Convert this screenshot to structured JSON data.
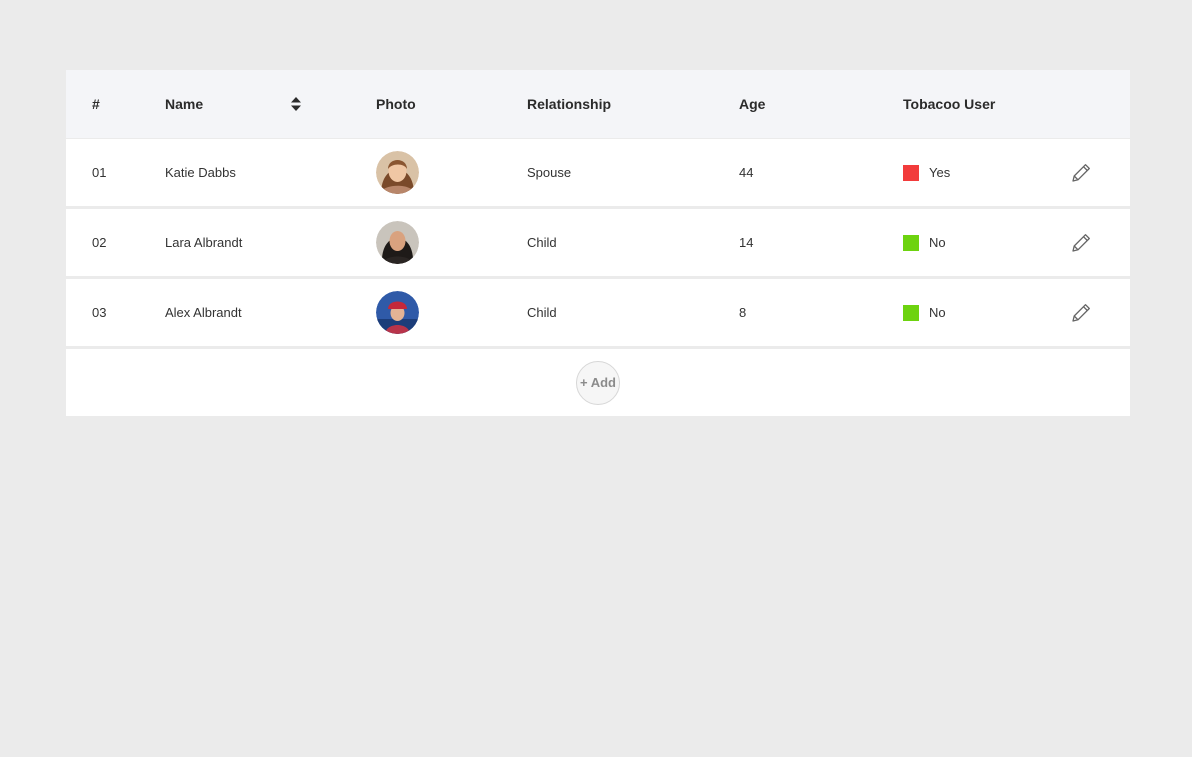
{
  "table": {
    "headers": {
      "num": "#",
      "name": "Name",
      "photo": "Photo",
      "relationship": "Relationship",
      "age": "Age",
      "tobacco": "Tobacoo User"
    },
    "rows": [
      {
        "num": "01",
        "name": "Katie Dabbs",
        "relationship": "Spouse",
        "age": "44",
        "tobacco": "Yes",
        "tobacco_color": "#f23b3b"
      },
      {
        "num": "02",
        "name": "Lara Albrandt",
        "relationship": "Child",
        "age": "14",
        "tobacco": "No",
        "tobacco_color": "#6dd30f"
      },
      {
        "num": "03",
        "name": "Alex Albrandt",
        "relationship": "Child",
        "age": "8",
        "tobacco": "No",
        "tobacco_color": "#6dd30f"
      }
    ],
    "add_label": "+ Add"
  },
  "icons": {
    "sort": "sort-up-down-icon",
    "edit": "pencil-icon"
  }
}
